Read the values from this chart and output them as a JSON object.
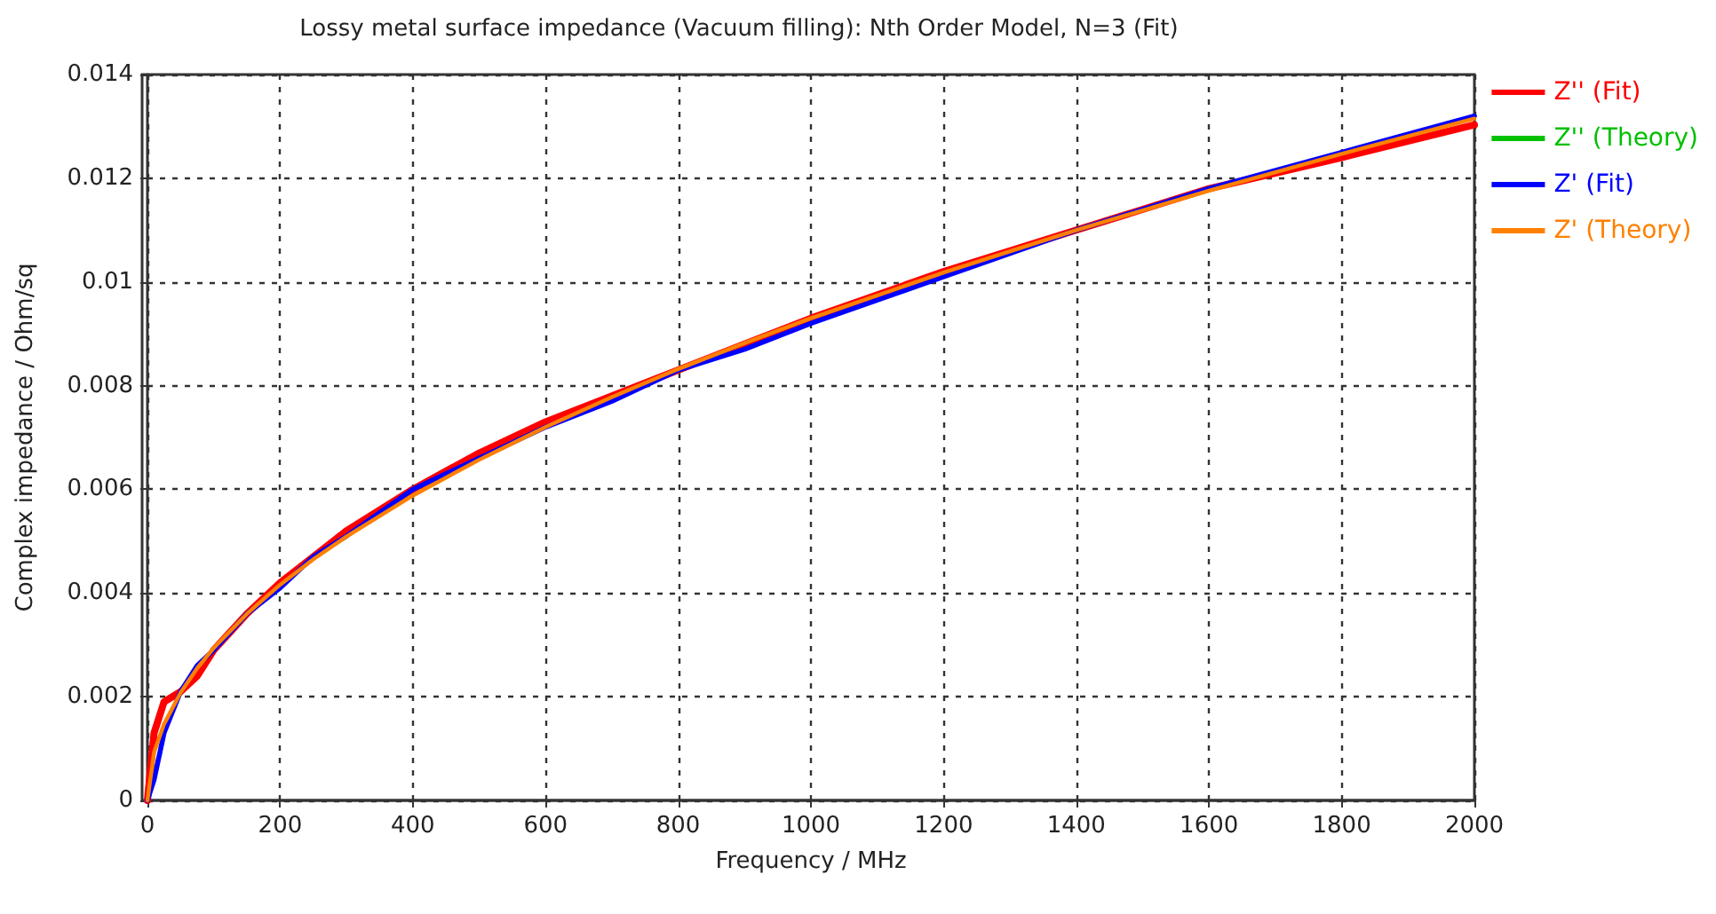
{
  "chart_data": {
    "type": "line",
    "title": "Lossy metal surface impedance (Vacuum filling): Nth Order Model, N=3 (Fit)",
    "xlabel": "Frequency / MHz",
    "ylabel": "Complex impedance / Ohm/sq",
    "x": [
      0,
      10,
      25,
      50,
      75,
      100,
      150,
      200,
      250,
      300,
      400,
      500,
      600,
      700,
      800,
      900,
      1000,
      1200,
      1400,
      1600,
      1800,
      2000
    ],
    "series": [
      {
        "name": "Z'' (Fit)",
        "color": "#ff0000",
        "values": [
          0,
          0.0013,
          0.0019,
          0.0021,
          0.0024,
          0.0029,
          0.0036,
          0.0042,
          0.0047,
          0.0052,
          0.006,
          0.0067,
          0.0073,
          0.0078,
          0.0083,
          0.0088,
          0.0093,
          0.0102,
          0.011,
          0.0118,
          0.0124,
          0.01303
        ]
      },
      {
        "name": "Z'' (Theory)",
        "color": "#00c000",
        "values": [
          null,
          null,
          null,
          null,
          null,
          null,
          null,
          null,
          null,
          null,
          null,
          null,
          null,
          null,
          null,
          null,
          null,
          null,
          null,
          null,
          null,
          null
        ]
      },
      {
        "name": "Z' (Fit)",
        "color": "#0000ff",
        "values": [
          0,
          0.0004,
          0.0013,
          0.0021,
          0.0026,
          0.0029,
          0.0036,
          0.0041,
          0.0047,
          0.0051,
          0.006,
          0.0066,
          0.0072,
          0.0077,
          0.0083,
          0.0087,
          0.0092,
          0.0101,
          0.011,
          0.0118,
          0.0125,
          0.0132
        ]
      },
      {
        "name": "Z' (Theory)",
        "color": "#ff8000",
        "values": [
          0,
          0.00093,
          0.00147,
          0.00208,
          0.00255,
          0.00294,
          0.0036,
          0.00416,
          0.00465,
          0.00509,
          0.00588,
          0.00657,
          0.0072,
          0.00778,
          0.00832,
          0.00882,
          0.0093,
          0.01018,
          0.011,
          0.01176,
          0.01247,
          0.01315
        ]
      }
    ],
    "xlim": [
      0,
      2000
    ],
    "xticks": [
      0,
      200,
      400,
      600,
      800,
      1000,
      1200,
      1400,
      1600,
      1800,
      2000
    ],
    "ylim": [
      0,
      0.014
    ],
    "yticks": [
      0,
      0.002,
      0.004,
      0.006,
      0.008,
      0.01,
      0.012,
      0.014
    ],
    "grid": true,
    "legend": "right",
    "marker": "none",
    "line_style": "solid"
  }
}
